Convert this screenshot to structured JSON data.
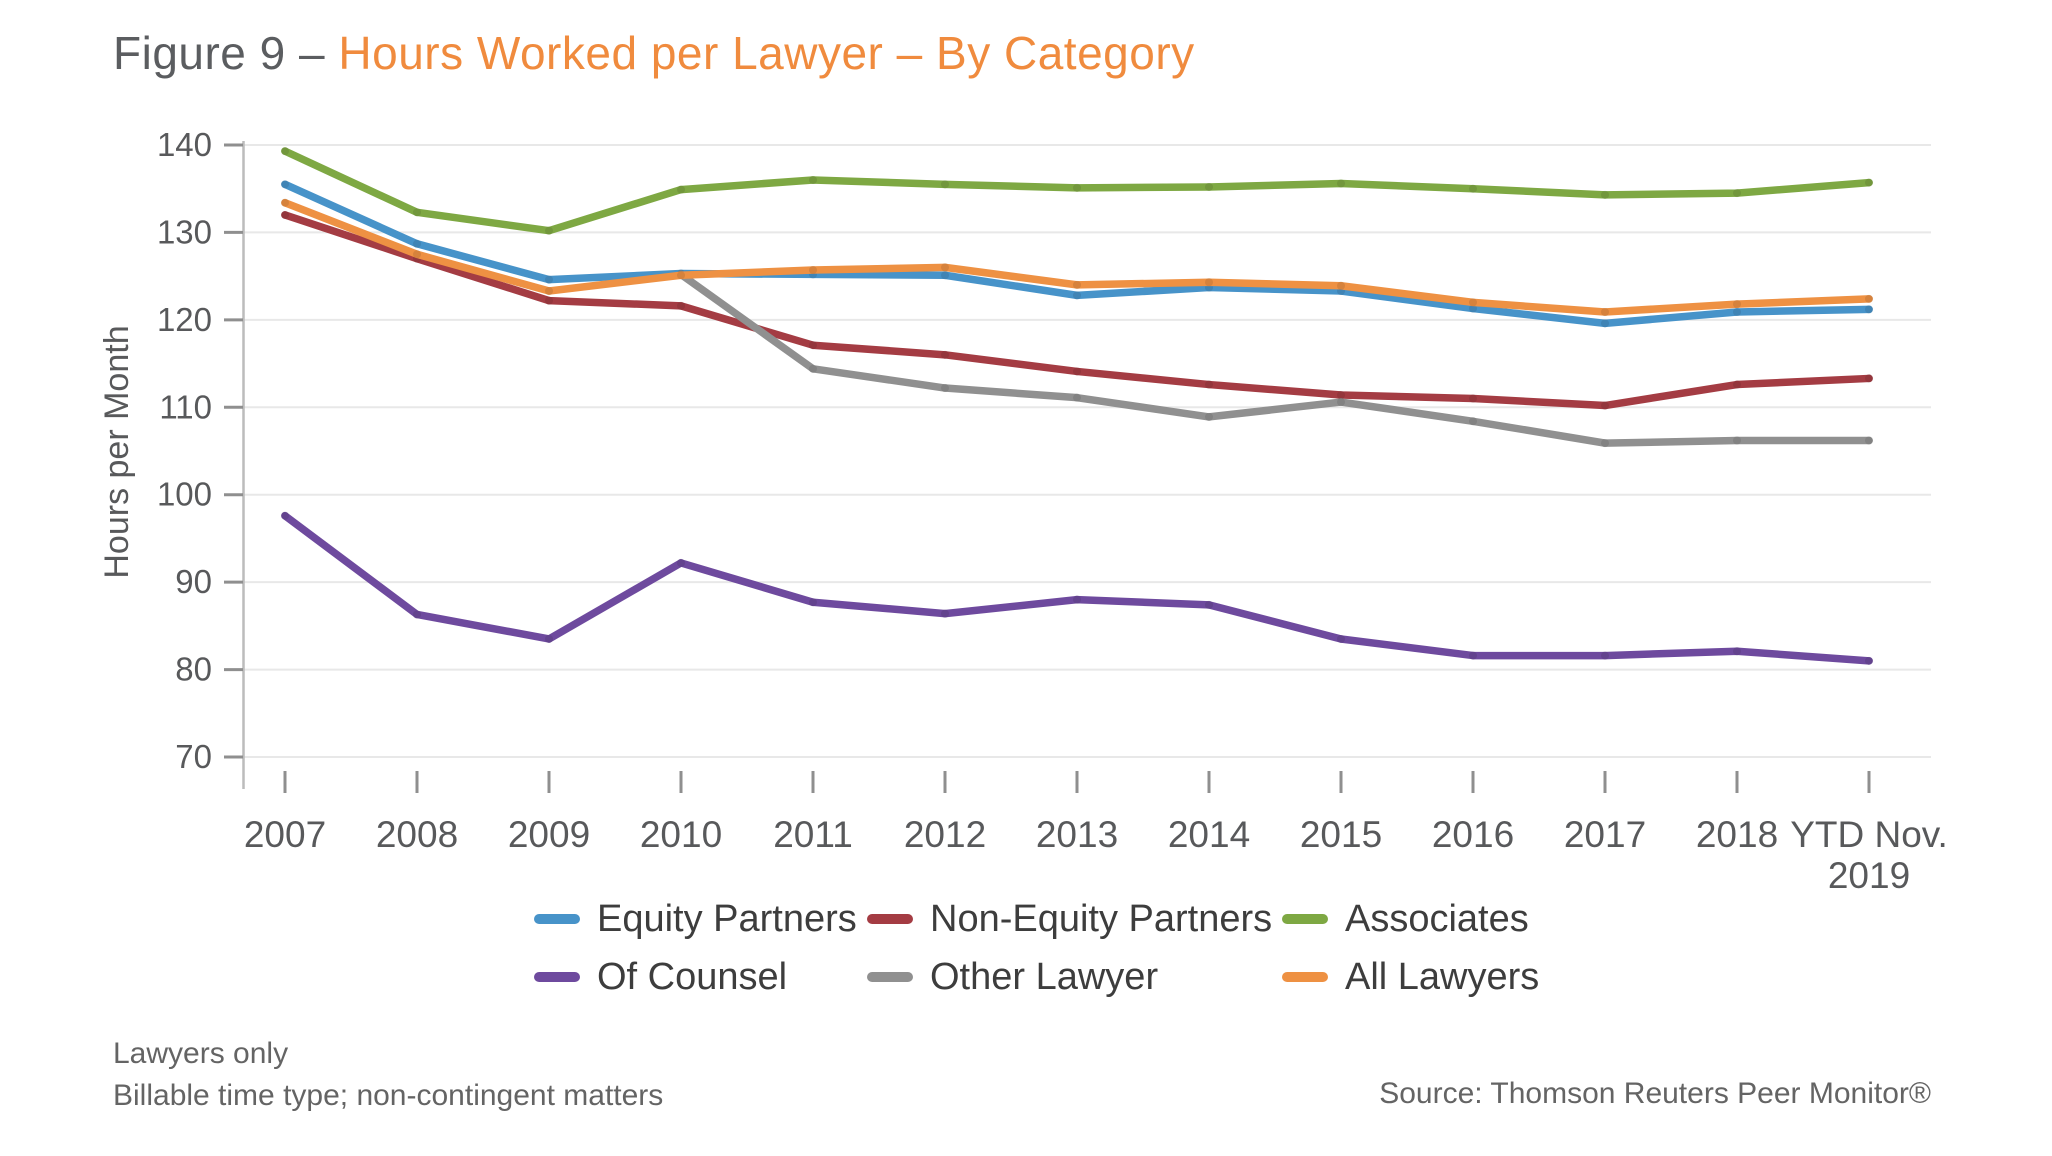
{
  "title": {
    "prefix": "Figure 9 – ",
    "main": "Hours Worked per Lawyer – By Category"
  },
  "chart_data": {
    "type": "line",
    "title": "Hours Worked per Lawyer – By Category",
    "xlabel": "",
    "ylabel": "Hours per Month",
    "ylim": [
      70,
      140
    ],
    "yticks": [
      70,
      80,
      90,
      100,
      110,
      120,
      130,
      140
    ],
    "grid": "horizontal",
    "legend_position": "bottom",
    "categories": [
      "2007",
      "2008",
      "2009",
      "2010",
      "2011",
      "2012",
      "2013",
      "2014",
      "2015",
      "2016",
      "2017",
      "2018",
      "YTD Nov.\n2019"
    ],
    "series": [
      {
        "name": "Equity Partners",
        "color": "#4793c9",
        "values": [
          135.5,
          128.7,
          124.6,
          125.3,
          125.2,
          125.1,
          122.8,
          123.7,
          123.3,
          121.3,
          119.6,
          120.9,
          121.2
        ]
      },
      {
        "name": "Non-Equity Partners",
        "color": "#a43c43",
        "values": [
          132.0,
          127.0,
          122.2,
          121.6,
          117.1,
          116.0,
          114.1,
          112.6,
          111.4,
          111.0,
          110.2,
          112.6,
          113.3
        ]
      },
      {
        "name": "Associates",
        "color": "#7ea843",
        "values": [
          139.3,
          132.3,
          130.2,
          134.9,
          136.0,
          135.5,
          135.1,
          135.2,
          135.6,
          135.0,
          134.3,
          134.5,
          135.7
        ]
      },
      {
        "name": "Of Counsel",
        "color": "#6e4a9e",
        "values": [
          97.6,
          86.3,
          83.5,
          92.2,
          87.7,
          86.4,
          88.0,
          87.4,
          83.5,
          81.6,
          81.6,
          82.1,
          81.0
        ]
      },
      {
        "name": "Other Lawyer",
        "color": "#909090",
        "values": [
          null,
          null,
          null,
          125.2,
          114.4,
          112.2,
          111.1,
          108.9,
          110.6,
          108.4,
          105.9,
          106.2,
          106.2
        ]
      },
      {
        "name": "All Lawyers",
        "color": "#ee9143",
        "values": [
          133.4,
          127.5,
          123.3,
          125.1,
          125.7,
          126.0,
          124.0,
          124.3,
          123.9,
          122.0,
          120.9,
          121.8,
          122.4
        ]
      }
    ]
  },
  "footnotes": {
    "line1": "Lawyers only",
    "line2": "Billable time type; non-contingent matters",
    "source": "Source: Thomson Reuters Peer Monitor®"
  }
}
